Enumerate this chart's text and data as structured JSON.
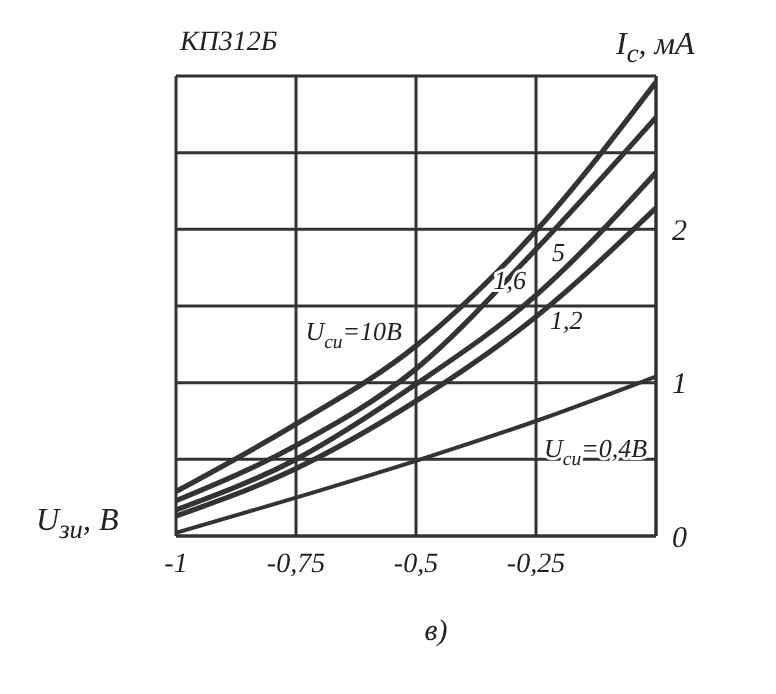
{
  "chart_data": {
    "type": "line",
    "title": "КП312Б",
    "xlabel": "U$_{зи}$, В",
    "ylabel": "I$_{с}$, мА",
    "annotations": [
      "в)"
    ],
    "x": [
      -1,
      -0.75,
      -0.5,
      -0.25,
      0
    ],
    "series": [
      {
        "name": "U$_{си}$=10В",
        "color": "#333333",
        "values": [
          0.29,
          0.73,
          1.24,
          1.99,
          2.96
        ]
      },
      {
        "name": "5",
        "color": "#333333",
        "values": [
          0.23,
          0.59,
          1.09,
          1.87,
          2.73
        ]
      },
      {
        "name": "1,6",
        "color": "#333333",
        "values": [
          0.17,
          0.5,
          0.99,
          1.57,
          2.37
        ]
      },
      {
        "name": "1,2",
        "color": "#333333",
        "values": [
          0.13,
          0.44,
          0.88,
          1.43,
          2.14
        ]
      },
      {
        "name": "U$_{си}$=0,4В",
        "color": "#333333",
        "values": [
          0.02,
          0.25,
          0.49,
          0.75,
          1.04
        ]
      }
    ],
    "xlim": [
      -1,
      0
    ],
    "xticks": [
      -1,
      {
        "value": -0.75,
        "label": "-0,75"
      },
      {
        "value": -0.5,
        "label": "-0,5"
      },
      {
        "value": -0.25,
        "label": "-0,25"
      },
      {
        "value": 0,
        "label": null
      }
    ],
    "ylim": [
      0,
      3
    ],
    "yticks": [
      0,
      {
        "value": 0.5,
        "label": null
      },
      1,
      {
        "value": 1.5,
        "label": null
      },
      2,
      {
        "value": 2.5,
        "label": null
      },
      {
        "value": 3,
        "label": null
      }
    ],
    "grid": true,
    "legend": false,
    "marker": "none",
    "line_style": "solid"
  }
}
